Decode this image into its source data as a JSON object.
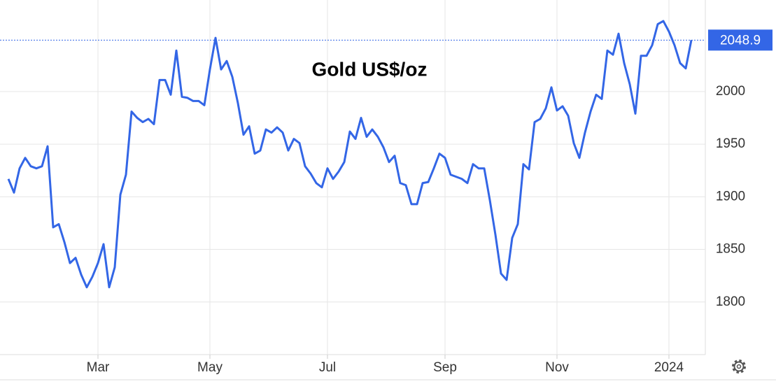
{
  "chart_data": {
    "type": "line",
    "title": "Gold US$/oz",
    "categories": [
      null,
      null,
      null,
      null,
      null,
      null,
      null,
      null,
      null,
      null,
      null,
      null,
      null,
      null,
      null,
      null,
      "Mar",
      null,
      null,
      null,
      null,
      null,
      null,
      null,
      null,
      null,
      null,
      null,
      null,
      null,
      null,
      null,
      null,
      null,
      null,
      null,
      "May",
      null,
      null,
      null,
      null,
      null,
      null,
      null,
      null,
      null,
      null,
      null,
      null,
      null,
      null,
      null,
      null,
      null,
      null,
      null,
      null,
      "Jul",
      null,
      null,
      null,
      null,
      null,
      null,
      null,
      null,
      null,
      null,
      null,
      null,
      null,
      null,
      null,
      null,
      null,
      null,
      null,
      null,
      "Sep",
      null,
      null,
      null,
      null,
      null,
      null,
      null,
      null,
      null,
      null,
      null,
      null,
      null,
      null,
      null,
      null,
      null,
      null,
      null,
      "Nov",
      null,
      null,
      null,
      null,
      null,
      null,
      null,
      null,
      null,
      null,
      null,
      null,
      null,
      null,
      null,
      null,
      null,
      null,
      null,
      "2024",
      null,
      null,
      null,
      null
    ],
    "values": [
      1917,
      1904,
      1927,
      1937,
      1929,
      1927,
      1929,
      1948,
      1871,
      1874,
      1857,
      1837,
      1842,
      1826,
      1814,
      1824,
      1837,
      1855,
      1814,
      1833,
      1902,
      1921,
      1981,
      1975,
      1971,
      1974,
      1969,
      2011,
      2011,
      1997,
      2039,
      1995,
      1994,
      1991,
      1991,
      1987,
      2021,
      2051,
      2021,
      2029,
      2014,
      1989,
      1959,
      1967,
      1941,
      1944,
      1964,
      1961,
      1966,
      1961,
      1944,
      1955,
      1951,
      1929,
      1922,
      1913,
      1909,
      1927,
      1917,
      1924,
      1933,
      1962,
      1955,
      1975,
      1957,
      1964,
      1957,
      1947,
      1933,
      1939,
      1913,
      1911,
      1893,
      1893,
      1913,
      1914,
      1927,
      1941,
      1937,
      1921,
      1919,
      1917,
      1913,
      1931,
      1927,
      1927,
      1897,
      1864,
      1827,
      1821,
      1861,
      1874,
      1931,
      1926,
      1971,
      1974,
      1984,
      2004,
      1982,
      1986,
      1977,
      1951,
      1937,
      1961,
      1981,
      1997,
      1993,
      2039,
      2035,
      2055,
      2027,
      2007,
      1979,
      2034,
      2034,
      2044,
      2064,
      2067,
      2057,
      2044,
      2027,
      2022,
      2048.9
    ],
    "color": "#3366e6",
    "ylim": [
      1750,
      2087
    ],
    "yticks": [
      1800,
      1850,
      1900,
      1950,
      2000
    ],
    "grid": true,
    "last_value_marker": true
  }
}
